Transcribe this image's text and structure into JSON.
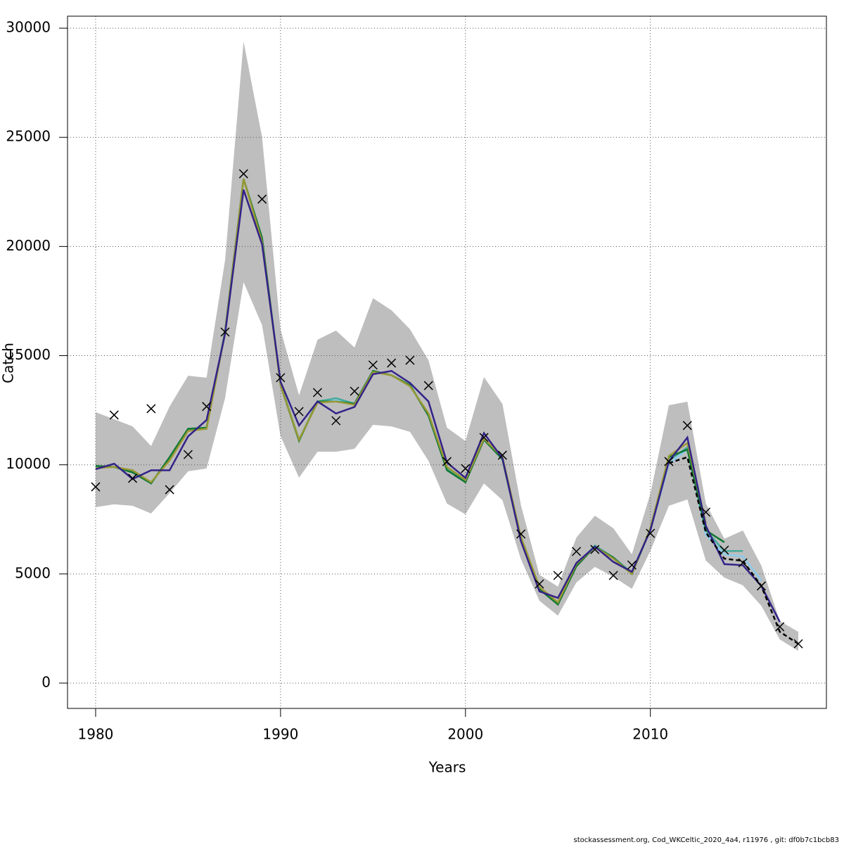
{
  "chart_data": {
    "type": "line",
    "xlabel": "Years",
    "ylabel": "Catch",
    "footer": "stockassessment.org, Cod_WKCeltic_2020_4a4, r11976 , git: df0b7c1bcb83",
    "x": [
      1980,
      1981,
      1982,
      1983,
      1984,
      1985,
      1986,
      1987,
      1988,
      1989,
      1990,
      1991,
      1992,
      1993,
      1994,
      1995,
      1996,
      1997,
      1998,
      1999,
      2000,
      2001,
      2002,
      2003,
      2004,
      2005,
      2006,
      2007,
      2008,
      2009,
      2010,
      2011,
      2012,
      2013,
      2014,
      2015,
      2016,
      2017,
      2018
    ],
    "xlim": [
      1978.48,
      2019.52
    ],
    "xticks": [
      1980,
      1990,
      2000,
      2010
    ],
    "ylim": [
      -1160,
      30550
    ],
    "yticks": [
      0,
      5000,
      10000,
      15000,
      20000,
      25000,
      30000
    ],
    "grid": true,
    "band": {
      "color": "#bebebe",
      "upper": [
        12410,
        12090,
        11760,
        10860,
        12670,
        14080,
        13990,
        19370,
        29390,
        25010,
        16180,
        13180,
        15730,
        16150,
        15370,
        17630,
        17080,
        16210,
        14790,
        11700,
        11090,
        14020,
        12790,
        8150,
        4960,
        4420,
        6670,
        7670,
        7090,
        5900,
        8670,
        12730,
        12890,
        8220,
        6610,
        6990,
        5380,
        2840,
        2350
      ],
      "lower": [
        8060,
        8190,
        8120,
        7770,
        8700,
        9700,
        9830,
        13050,
        18370,
        16400,
        11310,
        9410,
        10600,
        10600,
        10730,
        11830,
        11760,
        11510,
        10180,
        8220,
        7730,
        9150,
        8380,
        5670,
        3770,
        3090,
        4610,
        5320,
        4870,
        4320,
        6060,
        8120,
        8410,
        5610,
        4830,
        4480,
        3540,
        2000,
        1480
      ]
    },
    "series": [
      {
        "color": "#88ccee",
        "values": [
          9900,
          9900,
          9700,
          9150,
          10300,
          11600,
          11700,
          16100,
          23100,
          20300,
          13700,
          11150,
          12900,
          12950,
          12800,
          14300,
          14100,
          13650,
          12300,
          9800,
          9250,
          11200,
          10300,
          6600,
          4300,
          3650,
          5400,
          6250,
          5700,
          5050,
          7000,
          10050,
          10700,
          6800,
          5900,
          5800,
          4700,
          null,
          null
        ]
      },
      {
        "color": "#44aa99",
        "values": [
          9900,
          9900,
          9700,
          9150,
          10300,
          11600,
          11700,
          16100,
          23100,
          20300,
          13700,
          11150,
          12900,
          13050,
          12800,
          14300,
          14100,
          13650,
          12300,
          9800,
          9250,
          11200,
          10300,
          6600,
          4300,
          3650,
          5400,
          6300,
          5750,
          5050,
          7050,
          10200,
          10800,
          7000,
          6050,
          6050,
          null,
          null,
          null
        ]
      },
      {
        "color": "#117733",
        "values": [
          9950,
          9900,
          9650,
          9150,
          10350,
          11650,
          11700,
          16100,
          23100,
          20400,
          13650,
          11100,
          12900,
          12900,
          12800,
          14300,
          14100,
          13650,
          12250,
          9750,
          9200,
          11150,
          10250,
          6550,
          4300,
          3600,
          5350,
          6250,
          5750,
          5000,
          7050,
          10350,
          10700,
          7000,
          6450,
          null,
          null,
          null,
          null
        ]
      },
      {
        "color": "#999933",
        "values": [
          9850,
          9900,
          9750,
          9200,
          10200,
          11550,
          11650,
          16050,
          23100,
          20200,
          13650,
          11150,
          12850,
          12900,
          12750,
          14250,
          14100,
          13600,
          12350,
          9900,
          9300,
          11200,
          10350,
          6700,
          4400,
          3700,
          5450,
          6250,
          5700,
          5000,
          7100,
          10400,
          11000,
          7300,
          null,
          null,
          null,
          null,
          null
        ]
      },
      {
        "color": "#332288",
        "values": [
          9800,
          10050,
          9350,
          9750,
          9750,
          11300,
          12050,
          16000,
          22600,
          20100,
          13800,
          11800,
          12900,
          12350,
          12650,
          14150,
          14300,
          13750,
          12900,
          10100,
          9400,
          11450,
          10300,
          6500,
          4200,
          3900,
          5500,
          6250,
          5550,
          5100,
          7000,
          10150,
          11250,
          7200,
          5450,
          5400,
          4450,
          2800,
          null
        ]
      },
      {
        "color": "#000000",
        "dashed": true,
        "values": [
          null,
          null,
          null,
          null,
          null,
          null,
          null,
          null,
          null,
          null,
          null,
          null,
          null,
          null,
          null,
          null,
          null,
          null,
          null,
          null,
          null,
          null,
          null,
          null,
          null,
          null,
          null,
          null,
          null,
          null,
          null,
          10080,
          10350,
          6900,
          5700,
          5600,
          4450,
          2350,
          1800
        ]
      }
    ],
    "observed": {
      "color": "#000000",
      "marker": "x",
      "values": [
        8990,
        12280,
        9380,
        12570,
        8860,
        10470,
        12670,
        16080,
        23330,
        22170,
        13990,
        12440,
        13310,
        12020,
        13370,
        14570,
        14660,
        14790,
        13630,
        10150,
        9830,
        11250,
        10440,
        6830,
        4540,
        4930,
        6030,
        6120,
        4930,
        5410,
        6860,
        10150,
        11800,
        7830,
        6090,
        5510,
        4450,
        2580,
        1800
      ]
    }
  }
}
